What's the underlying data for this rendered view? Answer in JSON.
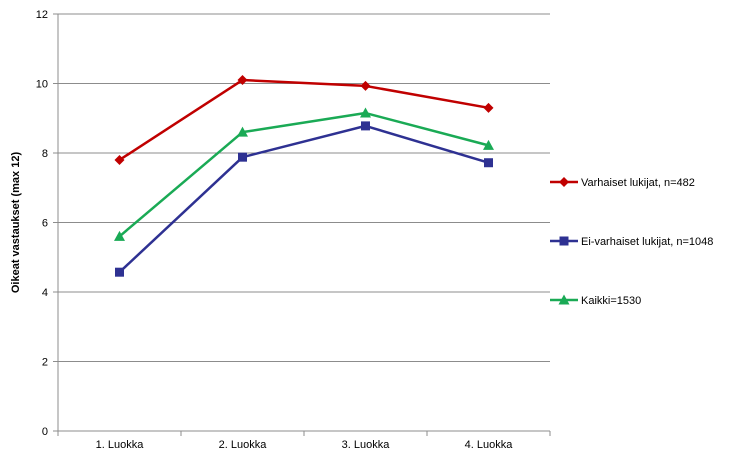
{
  "chart_data": {
    "type": "line",
    "title": "",
    "xlabel": "",
    "ylabel": "Oikeat vastaukset (max 12)",
    "categories": [
      "1. Luokka",
      "2. Luokka",
      "3. Luokka",
      "4. Luokka"
    ],
    "ylim": [
      0,
      12
    ],
    "yticks": [
      0,
      2,
      4,
      6,
      8,
      10,
      12
    ],
    "grid": true,
    "legend_position": "right",
    "series": [
      {
        "name": "Varhaiset lukijat, n=482",
        "values": [
          7.8,
          10.1,
          9.93,
          9.3
        ],
        "color": "#c00000",
        "marker": "diamond"
      },
      {
        "name": "Ei-varhaiset lukijat, n=1048",
        "values": [
          4.57,
          7.88,
          8.78,
          7.72
        ],
        "color": "#2e3192",
        "marker": "square"
      },
      {
        "name": "Kaikki=1530",
        "values": [
          5.6,
          8.6,
          9.15,
          8.22
        ],
        "color": "#1aaa55",
        "marker": "triangle"
      }
    ]
  }
}
